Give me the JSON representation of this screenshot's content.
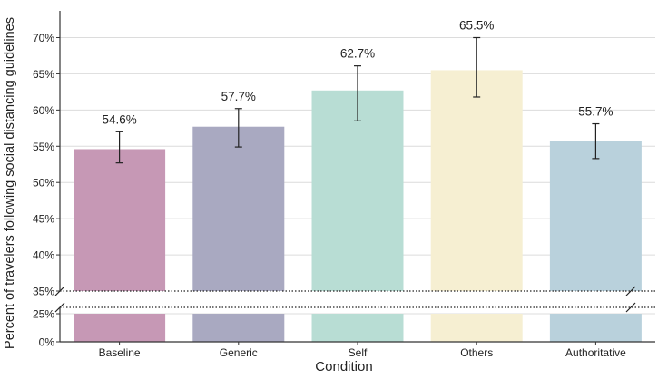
{
  "chart_data": {
    "type": "bar",
    "xlabel": "Condition",
    "ylabel": "Percent of travelers following social distancing guidelines",
    "categories": [
      "Baseline",
      "Generic",
      "Self",
      "Others",
      "Authoritative"
    ],
    "values": [
      54.6,
      57.7,
      62.7,
      65.5,
      55.7
    ],
    "value_labels": [
      "54.6%",
      "57.7%",
      "62.7%",
      "65.5%",
      "55.7%"
    ],
    "error_low": [
      52.7,
      54.9,
      58.5,
      61.8,
      53.3
    ],
    "error_high": [
      57.0,
      60.2,
      66.1,
      70.0,
      58.1
    ],
    "colors": [
      "#c698b5",
      "#a9a9c1",
      "#b8ddd4",
      "#f6efd2",
      "#b9d1dc"
    ],
    "axis_break": {
      "lower_max": 25,
      "upper_min": 35
    },
    "yticks_upper": [
      35,
      40,
      45,
      50,
      55,
      60,
      65,
      70
    ],
    "ytick_labels_upper": [
      "35%",
      "40%",
      "45%",
      "50%",
      "55%",
      "60%",
      "65%",
      "70%"
    ],
    "yticks_lower": [
      0,
      25
    ],
    "ytick_labels_lower": [
      "0%",
      "25%"
    ],
    "ylim": [
      0,
      72
    ],
    "grid": true
  }
}
